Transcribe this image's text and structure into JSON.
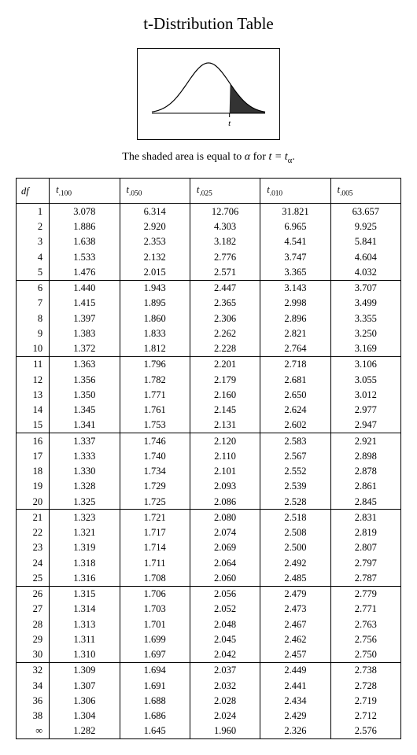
{
  "title": "t-Distribution Table",
  "figure": {
    "width": 160,
    "height": 100,
    "line_color": "#000000",
    "axis_width": 1,
    "curve_width": 1.2,
    "shade_color": "#333333",
    "t_label": "t",
    "t_label_fontsize": 11
  },
  "caption_parts": {
    "prefix": "The shaded area is equal to ",
    "alpha": "α",
    "mid": " for ",
    "t_eq": "t = t",
    "alpha_sub": "α",
    "suffix": "."
  },
  "columns": [
    {
      "label_main": "df",
      "label_sub": ""
    },
    {
      "label_main": "t",
      "label_sub": ".100"
    },
    {
      "label_main": "t",
      "label_sub": ".050"
    },
    {
      "label_main": "t",
      "label_sub": ".025"
    },
    {
      "label_main": "t",
      "label_sub": ".010"
    },
    {
      "label_main": "t",
      "label_sub": ".005"
    }
  ],
  "groups": [
    {
      "rows": [
        {
          "df": "1",
          "v": [
            "3.078",
            "6.314",
            "12.706",
            "31.821",
            "63.657"
          ]
        },
        {
          "df": "2",
          "v": [
            "1.886",
            "2.920",
            "4.303",
            "6.965",
            "9.925"
          ]
        },
        {
          "df": "3",
          "v": [
            "1.638",
            "2.353",
            "3.182",
            "4.541",
            "5.841"
          ]
        },
        {
          "df": "4",
          "v": [
            "1.533",
            "2.132",
            "2.776",
            "3.747",
            "4.604"
          ]
        },
        {
          "df": "5",
          "v": [
            "1.476",
            "2.015",
            "2.571",
            "3.365",
            "4.032"
          ]
        }
      ]
    },
    {
      "rows": [
        {
          "df": "6",
          "v": [
            "1.440",
            "1.943",
            "2.447",
            "3.143",
            "3.707"
          ]
        },
        {
          "df": "7",
          "v": [
            "1.415",
            "1.895",
            "2.365",
            "2.998",
            "3.499"
          ]
        },
        {
          "df": "8",
          "v": [
            "1.397",
            "1.860",
            "2.306",
            "2.896",
            "3.355"
          ]
        },
        {
          "df": "9",
          "v": [
            "1.383",
            "1.833",
            "2.262",
            "2.821",
            "3.250"
          ]
        },
        {
          "df": "10",
          "v": [
            "1.372",
            "1.812",
            "2.228",
            "2.764",
            "3.169"
          ]
        }
      ]
    },
    {
      "rows": [
        {
          "df": "11",
          "v": [
            "1.363",
            "1.796",
            "2.201",
            "2.718",
            "3.106"
          ]
        },
        {
          "df": "12",
          "v": [
            "1.356",
            "1.782",
            "2.179",
            "2.681",
            "3.055"
          ]
        },
        {
          "df": "13",
          "v": [
            "1.350",
            "1.771",
            "2.160",
            "2.650",
            "3.012"
          ]
        },
        {
          "df": "14",
          "v": [
            "1.345",
            "1.761",
            "2.145",
            "2.624",
            "2.977"
          ]
        },
        {
          "df": "15",
          "v": [
            "1.341",
            "1.753",
            "2.131",
            "2.602",
            "2.947"
          ]
        }
      ]
    },
    {
      "rows": [
        {
          "df": "16",
          "v": [
            "1.337",
            "1.746",
            "2.120",
            "2.583",
            "2.921"
          ]
        },
        {
          "df": "17",
          "v": [
            "1.333",
            "1.740",
            "2.110",
            "2.567",
            "2.898"
          ]
        },
        {
          "df": "18",
          "v": [
            "1.330",
            "1.734",
            "2.101",
            "2.552",
            "2.878"
          ]
        },
        {
          "df": "19",
          "v": [
            "1.328",
            "1.729",
            "2.093",
            "2.539",
            "2.861"
          ]
        },
        {
          "df": "20",
          "v": [
            "1.325",
            "1.725",
            "2.086",
            "2.528",
            "2.845"
          ]
        }
      ]
    },
    {
      "rows": [
        {
          "df": "21",
          "v": [
            "1.323",
            "1.721",
            "2.080",
            "2.518",
            "2.831"
          ]
        },
        {
          "df": "22",
          "v": [
            "1.321",
            "1.717",
            "2.074",
            "2.508",
            "2.819"
          ]
        },
        {
          "df": "23",
          "v": [
            "1.319",
            "1.714",
            "2.069",
            "2.500",
            "2.807"
          ]
        },
        {
          "df": "24",
          "v": [
            "1.318",
            "1.711",
            "2.064",
            "2.492",
            "2.797"
          ]
        },
        {
          "df": "25",
          "v": [
            "1.316",
            "1.708",
            "2.060",
            "2.485",
            "2.787"
          ]
        }
      ]
    },
    {
      "rows": [
        {
          "df": "26",
          "v": [
            "1.315",
            "1.706",
            "2.056",
            "2.479",
            "2.779"
          ]
        },
        {
          "df": "27",
          "v": [
            "1.314",
            "1.703",
            "2.052",
            "2.473",
            "2.771"
          ]
        },
        {
          "df": "28",
          "v": [
            "1.313",
            "1.701",
            "2.048",
            "2.467",
            "2.763"
          ]
        },
        {
          "df": "29",
          "v": [
            "1.311",
            "1.699",
            "2.045",
            "2.462",
            "2.756"
          ]
        },
        {
          "df": "30",
          "v": [
            "1.310",
            "1.697",
            "2.042",
            "2.457",
            "2.750"
          ]
        }
      ]
    },
    {
      "rows": [
        {
          "df": "32",
          "v": [
            "1.309",
            "1.694",
            "2.037",
            "2.449",
            "2.738"
          ]
        },
        {
          "df": "34",
          "v": [
            "1.307",
            "1.691",
            "2.032",
            "2.441",
            "2.728"
          ]
        },
        {
          "df": "36",
          "v": [
            "1.306",
            "1.688",
            "2.028",
            "2.434",
            "2.719"
          ]
        },
        {
          "df": "38",
          "v": [
            "1.304",
            "1.686",
            "2.024",
            "2.429",
            "2.712"
          ]
        },
        {
          "df": "∞",
          "v": [
            "1.282",
            "1.645",
            "1.960",
            "2.326",
            "2.576"
          ]
        }
      ]
    }
  ],
  "style": {
    "text_color": "#000000",
    "border_color": "#000000",
    "background": "#ffffff",
    "body_fontsize": 12.5,
    "title_fontsize": 21,
    "caption_fontsize": 14
  }
}
